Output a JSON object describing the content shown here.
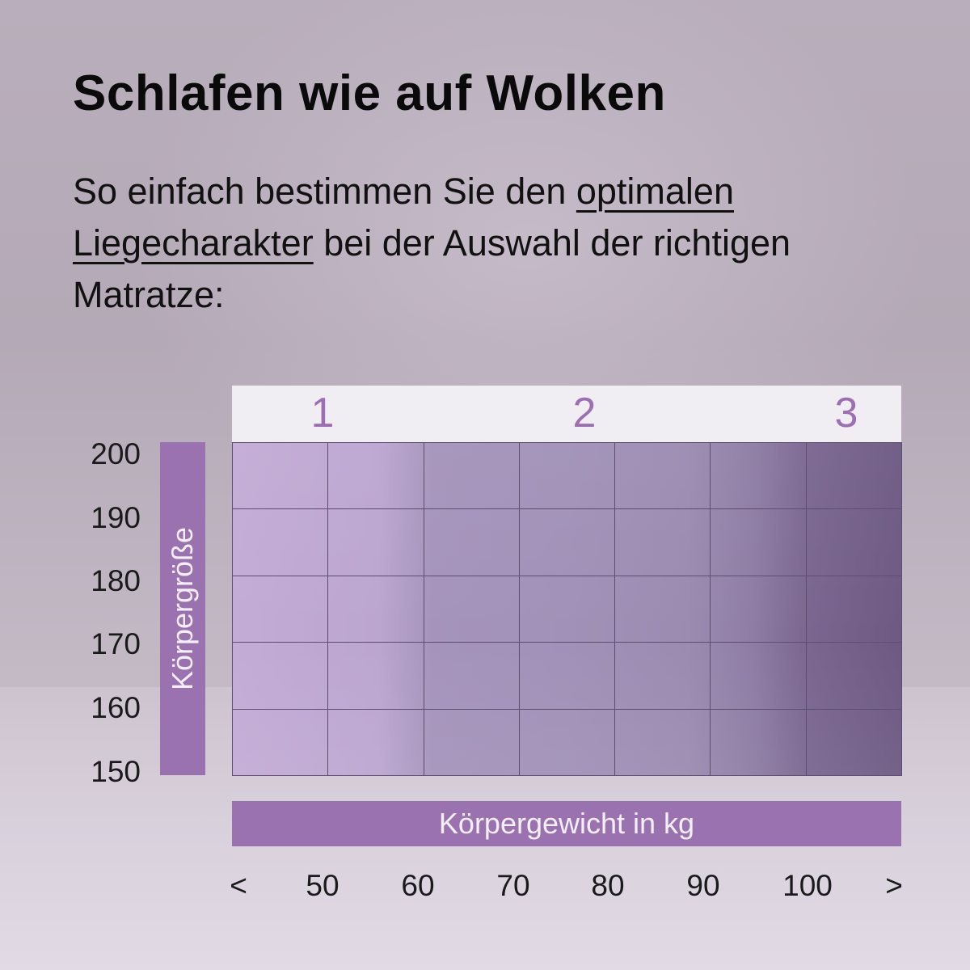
{
  "header": {
    "title": "Schlafen wie auf Wolken",
    "subtitle_part1": "So einfach bestimmen Sie den ",
    "subtitle_link": "optimalen Liegecharakter",
    "subtitle_part2": " bei der Auswahl der richtigen Matratze:"
  },
  "chart_data": {
    "type": "heatmap",
    "title": "",
    "xlabel": "Körpergewicht in kg",
    "ylabel": "Körpergröße",
    "x_ticks": [
      "<",
      "50",
      "60",
      "70",
      "80",
      "90",
      "100",
      ">"
    ],
    "y_ticks": [
      "200",
      "190",
      "180",
      "170",
      "160",
      "150"
    ],
    "levels": [
      {
        "label": "1",
        "x_center": 50
      },
      {
        "label": "2",
        "x_center": 77
      },
      {
        "label": "3",
        "x_center": 104
      }
    ],
    "columns": 7,
    "rows": 5,
    "colors": {
      "band": "#9b72b0",
      "level_text": "#9b6fb2",
      "grid_light": "#c3acd6",
      "grid_dark": "#6d5982",
      "grid_line": "#5d4e6e"
    }
  }
}
